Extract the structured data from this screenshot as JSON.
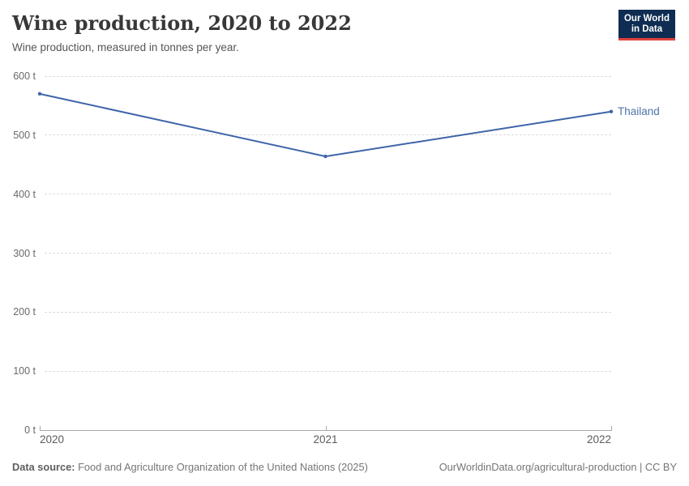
{
  "header": {
    "title": "Wine production, 2020 to 2022",
    "subtitle": "Wine production, measured in tonnes per year.",
    "logo_line1": "Our World",
    "logo_line2": "in Data"
  },
  "chart_data": {
    "type": "line",
    "title": "Wine production, 2020 to 2022",
    "subtitle": "Wine production, measured in tonnes per year.",
    "x": [
      2020,
      2021,
      2022
    ],
    "xtick_labels": [
      "2020",
      "2021",
      "2022"
    ],
    "series": [
      {
        "name": "Thailand",
        "values": [
          570,
          464,
          540
        ]
      }
    ],
    "unit": "t",
    "ylim": [
      0,
      600
    ],
    "yticks": [
      0,
      100,
      200,
      300,
      400,
      500,
      600
    ],
    "ytick_labels": [
      "0 t",
      "100 t",
      "200 t",
      "300 t",
      "400 t",
      "500 t",
      "600 t"
    ],
    "grid": "horizontal-dashed",
    "legend_position": "end-of-line-label"
  },
  "footer": {
    "source_label": "Data source:",
    "source_text": " Food and Agriculture Organization of the United Nations (2025)",
    "credit": "OurWorldinData.org/agricultural-production | CC BY"
  },
  "colors": {
    "line": "#3e64a9",
    "series_label": "#4e74a8",
    "logo_bg": "#0f2d52",
    "logo_red": "#e0413c",
    "gridline": "#dcdcdc",
    "axis": "#a8a8a8"
  }
}
